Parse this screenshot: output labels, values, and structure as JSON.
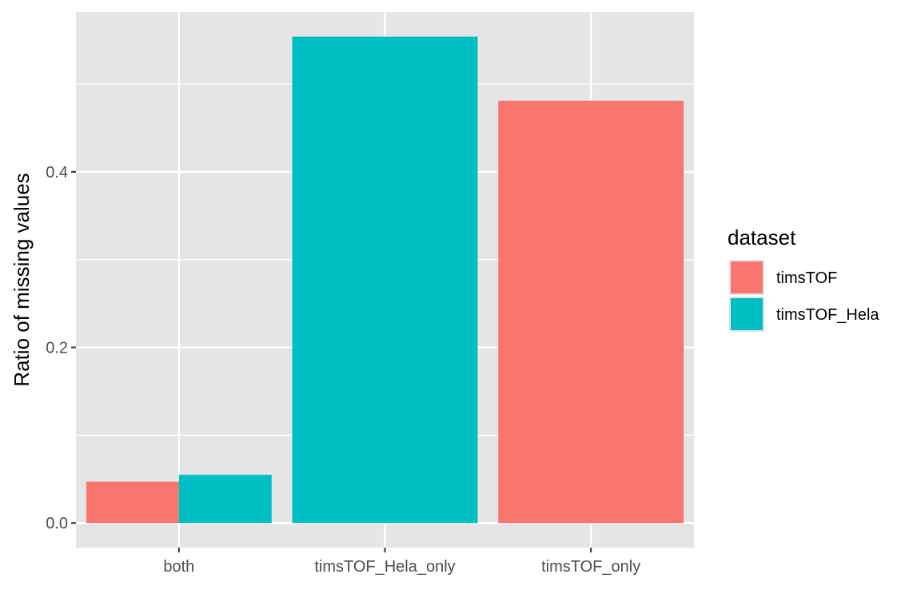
{
  "chart_data": {
    "type": "bar",
    "position": "dodge",
    "categories": [
      "both",
      "timsTOF_Hela_only",
      "timsTOF_only"
    ],
    "series": [
      {
        "name": "timsTOF",
        "color": "#F8766D",
        "values": [
          0.047,
          null,
          0.481
        ]
      },
      {
        "name": "timsTOF_Hela",
        "color": "#00BFC4",
        "values": [
          0.055,
          0.554,
          null
        ]
      }
    ],
    "xlabel": "",
    "ylabel": "Ratio of missing values",
    "ylim": [
      -0.028,
      0.582
    ],
    "yticks": [
      0.0,
      0.2,
      0.4
    ],
    "ytick_labels": [
      "0.0",
      "0.2",
      "0.4"
    ],
    "grid": true,
    "panel_background": "#E5E5E5",
    "legend": {
      "title": "dataset",
      "placement": "right"
    }
  }
}
